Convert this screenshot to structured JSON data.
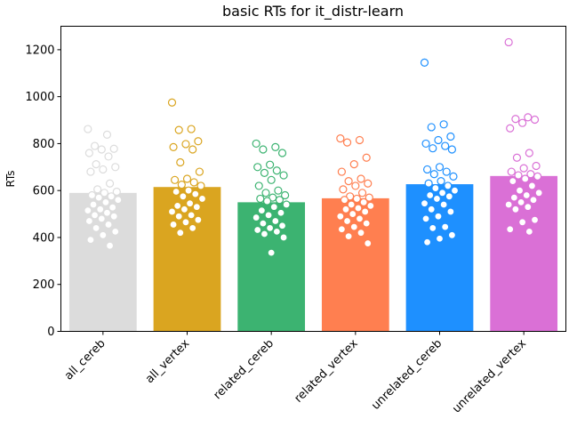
{
  "chart_data": {
    "type": "bar",
    "title": "basic RTs for it_distr-learn",
    "xlabel": "",
    "ylabel": "RTs",
    "ylim": [
      0,
      1300
    ],
    "yticks": [
      0,
      200,
      400,
      600,
      800,
      1000,
      1200
    ],
    "grid": false,
    "categories": [
      "all_cereb",
      "all_vertex",
      "related_cereb",
      "related_vertex",
      "unrelated_cereb",
      "unrelated_vertex"
    ],
    "values": [
      590,
      615,
      550,
      567,
      627,
      662
    ],
    "colors": [
      "#dcdcdc",
      "#daa520",
      "#3cb371",
      "#ff7f50",
      "#1e90ff",
      "#da70d6"
    ],
    "points": [
      [
        862,
        838,
        790,
        778,
        775,
        760,
        745,
        712,
        700,
        690,
        680,
        630,
        605,
        595,
        590,
        580,
        575,
        570,
        560,
        550,
        540,
        528,
        520,
        515,
        505,
        495,
        490,
        480,
        470,
        455,
        440,
        425,
        410,
        390,
        365
      ],
      [
        975,
        862,
        858,
        810,
        798,
        785,
        775,
        720,
        680,
        650,
        645,
        635,
        625,
        620,
        600,
        595,
        585,
        575,
        565,
        545,
        535,
        530,
        520,
        510,
        495,
        490,
        475,
        465,
        455,
        440,
        420
      ],
      [
        800,
        785,
        775,
        760,
        710,
        700,
        685,
        675,
        665,
        645,
        620,
        600,
        590,
        580,
        570,
        565,
        560,
        555,
        540,
        530,
        515,
        505,
        495,
        485,
        470,
        460,
        450,
        440,
        432,
        425,
        415,
        400,
        335
      ],
      [
        822,
        815,
        805,
        740,
        712,
        680,
        650,
        640,
        630,
        620,
        605,
        590,
        575,
        570,
        565,
        560,
        550,
        540,
        535,
        525,
        520,
        510,
        500,
        490,
        480,
        470,
        460,
        445,
        435,
        420,
        405,
        375
      ],
      [
        1145,
        882,
        870,
        830,
        815,
        800,
        790,
        780,
        775,
        700,
        690,
        680,
        670,
        660,
        640,
        630,
        620,
        610,
        600,
        590,
        580,
        575,
        565,
        545,
        540,
        520,
        510,
        490,
        480,
        445,
        440,
        410,
        395,
        380
      ],
      [
        1232,
        912,
        905,
        902,
        888,
        865,
        760,
        740,
        705,
        695,
        680,
        670,
        665,
        660,
        650,
        640,
        620,
        600,
        590,
        580,
        570,
        560,
        550,
        540,
        530,
        520,
        475,
        465,
        435,
        425
      ]
    ]
  }
}
